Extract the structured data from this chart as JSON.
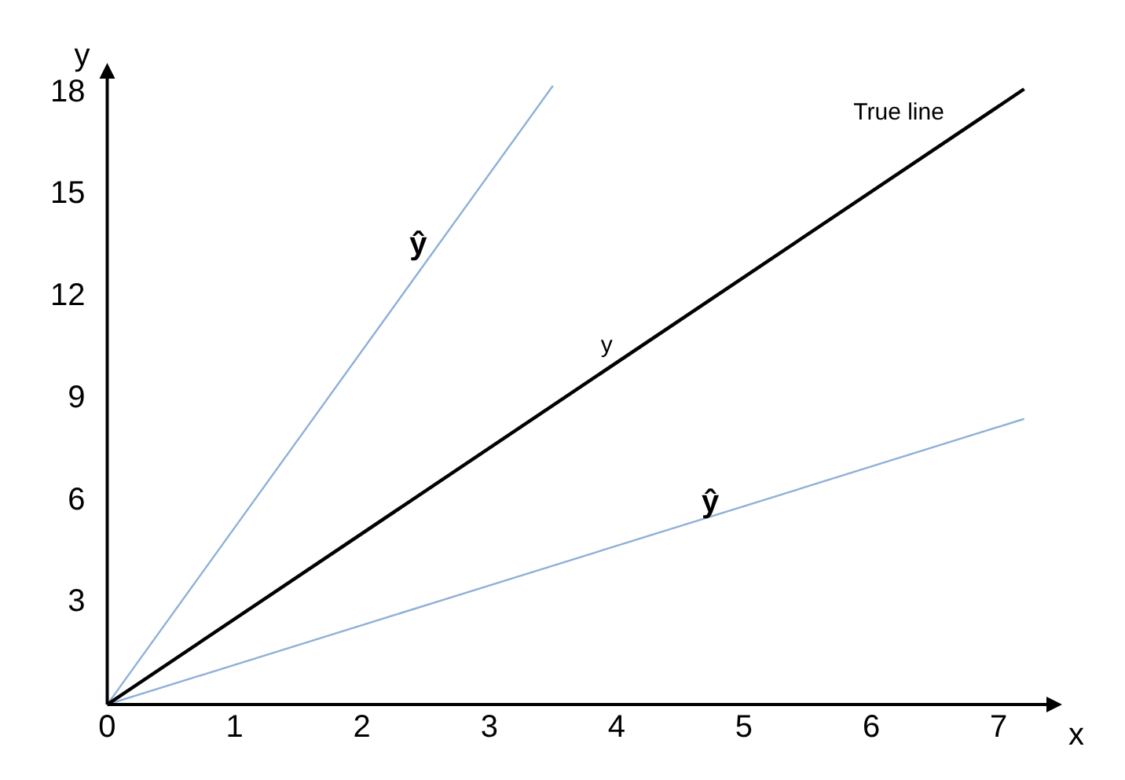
{
  "chart_data": {
    "type": "line",
    "xlabel": "x",
    "ylabel": "y",
    "xlim": [
      0,
      7.4
    ],
    "ylim": [
      0,
      18.5
    ],
    "xticks": [
      0,
      1,
      2,
      3,
      4,
      5,
      6,
      7
    ],
    "yticks": [
      3,
      6,
      9,
      12,
      15,
      18
    ],
    "grid": false,
    "legend": false,
    "marker": "none",
    "line_style": "solid",
    "series": [
      {
        "color": "#000000",
        "x": [
          0,
          7.2
        ],
        "values": [
          0,
          18.1
        ]
      },
      {
        "color": "#8fb0d8",
        "x": [
          0,
          3.5
        ],
        "values": [
          0,
          18.2
        ]
      },
      {
        "color": "#8fb0d8",
        "x": [
          0,
          7.2
        ],
        "values": [
          0,
          8.4
        ]
      }
    ],
    "annotations": [
      "True line",
      "y",
      "ŷ",
      "ŷ"
    ]
  }
}
